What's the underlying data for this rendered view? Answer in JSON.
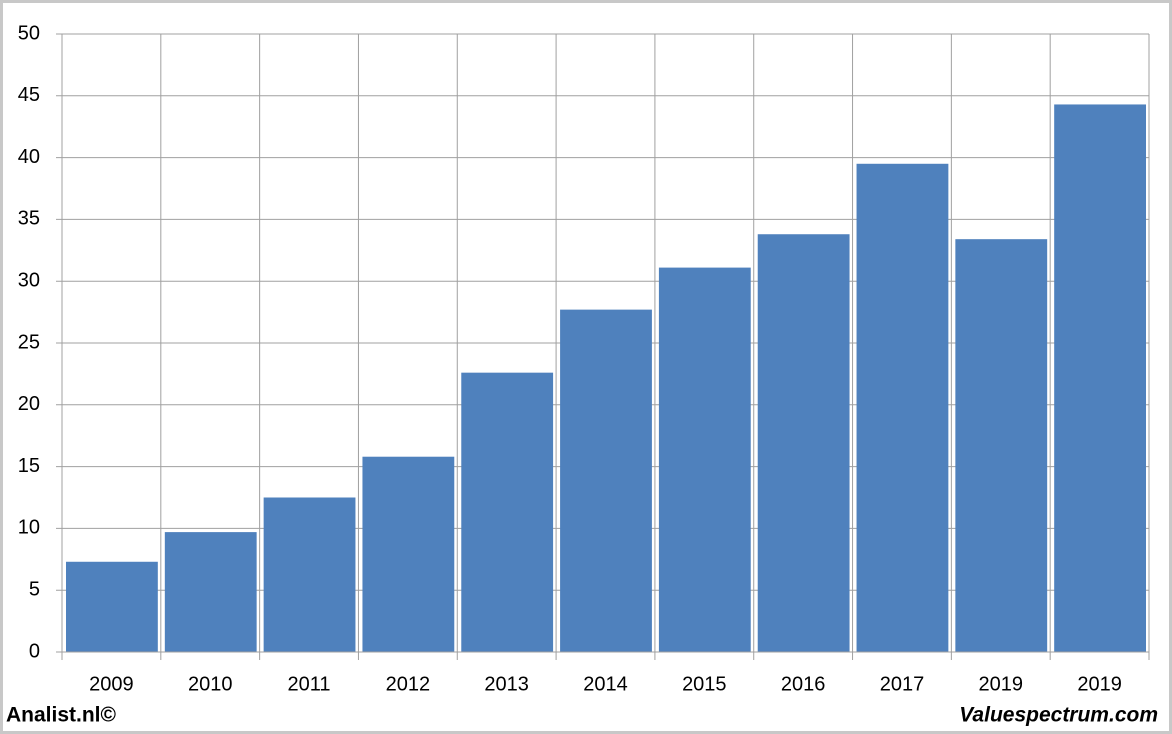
{
  "chart_data": {
    "type": "bar",
    "categories": [
      "2009",
      "2010",
      "2011",
      "2012",
      "2013",
      "2014",
      "2015",
      "2016",
      "2017",
      "2019",
      "2019"
    ],
    "values": [
      7.3,
      9.7,
      12.5,
      15.8,
      22.6,
      27.7,
      31.1,
      33.8,
      39.5,
      33.4,
      44.3
    ],
    "color": "#4f81bd",
    "ylim": [
      0,
      50
    ],
    "yticks": [
      0,
      5,
      10,
      15,
      20,
      25,
      30,
      35,
      40,
      45,
      50
    ],
    "grid": true,
    "annotations": [
      "Analist.nl©",
      "Valuespectrum.com"
    ]
  }
}
